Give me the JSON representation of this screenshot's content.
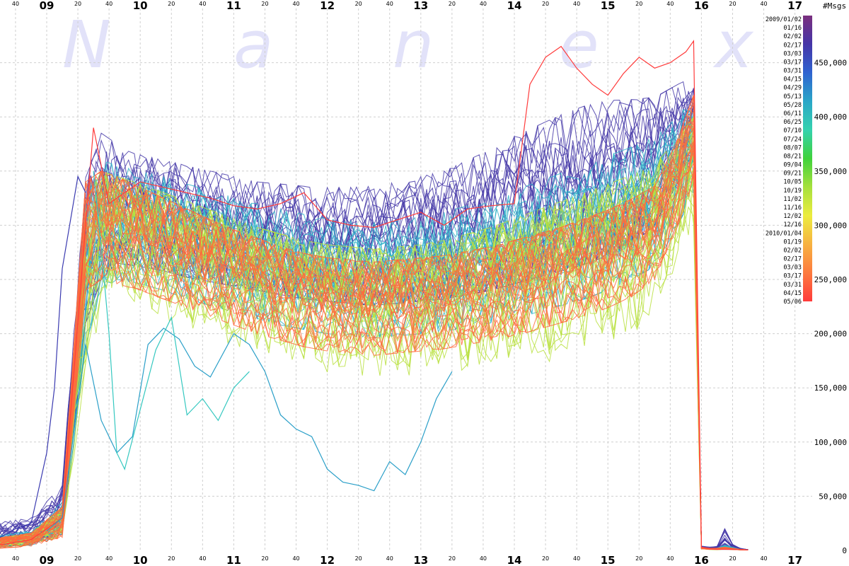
{
  "chart_data": {
    "type": "line",
    "title": "",
    "xlabel": "",
    "ylabel": "",
    "y_units": "#Msgs",
    "watermark": [
      "N",
      "a",
      "n",
      "e",
      "x"
    ],
    "x_hour_labels": [
      "09",
      "10",
      "11",
      "12",
      "13",
      "14",
      "15",
      "16",
      "17"
    ],
    "x_minute_labels": [
      "20",
      "40"
    ],
    "x_leading_minute": "40",
    "x_range": [
      "08:30",
      "17:00"
    ],
    "ylim": [
      0,
      500000
    ],
    "y_ticks": [
      {
        "value": 0,
        "label": "0"
      },
      {
        "value": 50000,
        "label": "50,000"
      },
      {
        "value": 100000,
        "label": "100,000"
      },
      {
        "value": 150000,
        "label": "150,000"
      },
      {
        "value": 200000,
        "label": "200,000"
      },
      {
        "value": 250000,
        "label": "250,000"
      },
      {
        "value": 300000,
        "label": "300,000"
      },
      {
        "value": 350000,
        "label": "350,000"
      },
      {
        "value": 400000,
        "label": "400,000"
      },
      {
        "value": 450000,
        "label": "450,000"
      }
    ],
    "grid": true,
    "legend_placement": "right",
    "legend_dates": [
      "2009/01/02",
      "01/16",
      "02/02",
      "02/17",
      "03/03",
      "03/17",
      "03/31",
      "04/15",
      "04/29",
      "05/13",
      "05/28",
      "06/11",
      "06/25",
      "07/10",
      "07/24",
      "08/07",
      "08/21",
      "09/04",
      "09/21",
      "10/05",
      "10/19",
      "11/02",
      "11/16",
      "12/02",
      "12/16",
      "2010/01/04",
      "01/19",
      "02/02",
      "02/17",
      "03/03",
      "03/17",
      "03/31",
      "04/15",
      "05/06"
    ],
    "color_scale": [
      "#7b2f7e",
      "#4535a8",
      "#2f63d0",
      "#2aa6c8",
      "#35d2ae",
      "#3fd23b",
      "#a6e03d",
      "#ecec3f",
      "#f7b241",
      "#fd7b3f",
      "#ff3b3b"
    ],
    "series_bands": [
      {
        "name": "2009/01/02 – 2009/04/15",
        "color": "#4538a8",
        "x": [
          "08:30",
          "08:50",
          "09:10",
          "09:25",
          "09:35",
          "09:45",
          "10:00",
          "10:15",
          "10:30",
          "10:45",
          "11:00",
          "11:15",
          "11:30",
          "11:45",
          "12:00",
          "12:15",
          "12:30",
          "12:45",
          "13:00",
          "13:15",
          "13:30",
          "13:45",
          "14:00",
          "14:15",
          "14:30",
          "14:45",
          "15:00",
          "15:15",
          "15:30",
          "15:45",
          "15:55",
          "16:00",
          "16:05",
          "16:10",
          "16:15",
          "16:20",
          "16:25",
          "16:30"
        ],
        "low": [
          3000,
          6000,
          15000,
          210000,
          250000,
          265000,
          262000,
          258000,
          252000,
          248000,
          244000,
          240000,
          236000,
          232000,
          230000,
          228000,
          226000,
          228000,
          230000,
          232000,
          236000,
          240000,
          246000,
          252000,
          258000,
          264000,
          272000,
          282000,
          300000,
          340000,
          360000,
          2000,
          1000,
          1000,
          1500,
          1000,
          800,
          500
        ],
        "high": [
          26000,
          30000,
          60000,
          345000,
          385000,
          375000,
          365000,
          360000,
          355000,
          350000,
          345000,
          340000,
          338000,
          336000,
          335000,
          335000,
          336000,
          340000,
          345000,
          350000,
          360000,
          370000,
          382000,
          392000,
          402000,
          410000,
          415000,
          416000,
          418000,
          430000,
          440000,
          4000,
          3000,
          4000,
          20000,
          6000,
          2000,
          800
        ]
      },
      {
        "name": "2009/05/13 – 2009/10/19",
        "color": "#2fb2c8",
        "x": [
          "08:30",
          "08:50",
          "09:10",
          "09:25",
          "09:35",
          "09:45",
          "10:00",
          "10:15",
          "10:30",
          "10:45",
          "11:00",
          "11:15",
          "11:30",
          "11:45",
          "12:00",
          "12:15",
          "12:30",
          "12:45",
          "13:00",
          "13:15",
          "13:30",
          "13:45",
          "14:00",
          "14:15",
          "14:30",
          "14:45",
          "15:00",
          "15:15",
          "15:30",
          "15:45",
          "15:55",
          "16:00",
          "16:05",
          "16:10",
          "16:15",
          "16:20",
          "16:25",
          "16:30"
        ],
        "low": [
          3000,
          5000,
          12000,
          190000,
          240000,
          250000,
          246000,
          240000,
          232000,
          226000,
          220000,
          214000,
          208000,
          204000,
          200000,
          198000,
          196000,
          198000,
          200000,
          202000,
          206000,
          210000,
          214000,
          220000,
          226000,
          232000,
          240000,
          250000,
          262000,
          300000,
          330000,
          2000,
          1000,
          800,
          1000,
          800,
          500,
          400
        ],
        "high": [
          14000,
          18000,
          45000,
          330000,
          360000,
          355000,
          350000,
          345000,
          338000,
          332000,
          326000,
          320000,
          315000,
          310000,
          306000,
          304000,
          302000,
          304000,
          308000,
          312000,
          318000,
          325000,
          332000,
          340000,
          348000,
          356000,
          364000,
          372000,
          382000,
          400000,
          420000,
          3000,
          2000,
          2000,
          5000,
          3000,
          1000,
          600
        ]
      },
      {
        "name": "2009/11/02 – 2010/01/19",
        "color": "#b8e03e",
        "x": [
          "08:30",
          "08:50",
          "09:10",
          "09:25",
          "09:35",
          "09:45",
          "10:00",
          "10:15",
          "10:30",
          "10:45",
          "11:00",
          "11:15",
          "11:30",
          "11:45",
          "12:00",
          "12:15",
          "12:30",
          "12:45",
          "13:00",
          "13:15",
          "13:30",
          "13:45",
          "14:00",
          "14:15",
          "14:30",
          "14:45",
          "15:00",
          "15:15",
          "15:30",
          "15:45",
          "15:55",
          "16:00",
          "16:05",
          "16:10",
          "16:15",
          "16:20",
          "16:25",
          "16:30"
        ],
        "low": [
          2000,
          4000,
          10000,
          160000,
          220000,
          225000,
          218000,
          210000,
          202000,
          194000,
          186000,
          180000,
          174000,
          168000,
          164000,
          160000,
          158000,
          158000,
          160000,
          162000,
          164000,
          166000,
          168000,
          170000,
          174000,
          178000,
          184000,
          192000,
          210000,
          260000,
          300000,
          1500,
          800,
          600,
          800,
          600,
          400,
          300
        ],
        "high": [
          12000,
          16000,
          40000,
          320000,
          350000,
          345000,
          338000,
          330000,
          322000,
          314000,
          306000,
          298000,
          292000,
          286000,
          282000,
          280000,
          278000,
          280000,
          282000,
          286000,
          292000,
          298000,
          306000,
          314000,
          322000,
          330000,
          338000,
          346000,
          356000,
          380000,
          400000,
          2500,
          1500,
          1500,
          3000,
          2000,
          800,
          500
        ]
      },
      {
        "name": "2010/02/02 – 2010/05/06",
        "color": "#ff6a3d",
        "x": [
          "08:30",
          "08:50",
          "09:10",
          "09:25",
          "09:35",
          "09:45",
          "10:00",
          "10:15",
          "10:30",
          "10:45",
          "11:00",
          "11:15",
          "11:30",
          "11:45",
          "12:00",
          "12:15",
          "12:30",
          "12:45",
          "13:00",
          "13:15",
          "13:30",
          "13:45",
          "14:00",
          "14:15",
          "14:30",
          "14:45",
          "15:00",
          "15:15",
          "15:30",
          "15:45",
          "15:55",
          "16:00",
          "16:05",
          "16:10",
          "16:15",
          "16:20",
          "16:25",
          "16:30"
        ],
        "low": [
          2000,
          4000,
          12000,
          240000,
          250000,
          246000,
          240000,
          232000,
          224000,
          216000,
          208000,
          200000,
          194000,
          188000,
          184000,
          182000,
          180000,
          182000,
          184000,
          186000,
          190000,
          194000,
          198000,
          204000,
          210000,
          216000,
          224000,
          234000,
          250000,
          300000,
          340000,
          1500,
          1000,
          800,
          1000,
          800,
          500,
          400
        ],
        "high": [
          12000,
          16000,
          40000,
          340000,
          350000,
          345000,
          335000,
          325000,
          315000,
          305000,
          296000,
          288000,
          280000,
          274000,
          270000,
          268000,
          266000,
          268000,
          270000,
          272000,
          276000,
          280000,
          286000,
          292000,
          298000,
          306000,
          314000,
          324000,
          336000,
          380000,
          420000,
          3000,
          2000,
          2000,
          3000,
          2000,
          1000,
          600
        ]
      }
    ],
    "series": [
      {
        "name": "2010/05/06",
        "color": "#ff3b3b",
        "x": [
          "08:30",
          "08:50",
          "09:10",
          "09:30",
          "09:40",
          "09:50",
          "10:00",
          "10:15",
          "10:30",
          "10:45",
          "11:00",
          "11:15",
          "11:30",
          "11:45",
          "12:00",
          "12:15",
          "12:30",
          "12:45",
          "13:00",
          "13:15",
          "13:30",
          "13:45",
          "14:00",
          "14:10",
          "14:20",
          "14:30",
          "14:40",
          "14:50",
          "15:00",
          "15:10",
          "15:20",
          "15:30",
          "15:40",
          "15:50",
          "15:55",
          "16:00",
          "16:05",
          "16:10",
          "16:20",
          "16:30"
        ],
        "y": [
          5000,
          10000,
          30000,
          390000,
          320000,
          330000,
          340000,
          335000,
          330000,
          325000,
          318000,
          315000,
          320000,
          330000,
          305000,
          300000,
          298000,
          305000,
          312000,
          300000,
          315000,
          318000,
          320000,
          430000,
          455000,
          465000,
          445000,
          430000,
          420000,
          440000,
          455000,
          445000,
          450000,
          460000,
          470000,
          3000,
          1500,
          1000,
          1000,
          500
        ]
      },
      {
        "name": "2009/10/05",
        "color": "#2a9fc8",
        "x": [
          "09:00",
          "09:10",
          "09:25",
          "09:35",
          "09:45",
          "09:55",
          "10:05",
          "10:15",
          "10:25",
          "10:35",
          "10:45",
          "11:00",
          "11:10",
          "11:20",
          "11:30",
          "11:40",
          "11:50",
          "12:00",
          "12:10",
          "12:20",
          "12:30",
          "12:40",
          "12:50",
          "13:00",
          "13:10",
          "13:20"
        ],
        "y": [
          18000,
          30000,
          190000,
          120000,
          90000,
          105000,
          190000,
          205000,
          195000,
          170000,
          160000,
          200000,
          190000,
          165000,
          125000,
          112000,
          105000,
          75000,
          63000,
          60000,
          55000,
          82000,
          70000,
          100000,
          140000,
          165000
        ]
      },
      {
        "name": "2009/09/21",
        "color": "#35c8c0",
        "x": [
          "09:30",
          "09:35",
          "09:40",
          "09:45",
          "09:50",
          "10:00",
          "10:10",
          "10:20",
          "10:30",
          "10:40",
          "10:50",
          "11:00",
          "11:10"
        ],
        "y": [
          350000,
          280000,
          200000,
          90000,
          75000,
          130000,
          185000,
          215000,
          125000,
          140000,
          120000,
          150000,
          165000
        ]
      },
      {
        "name": "2009/01/02",
        "color": "#3a3ab0",
        "x": [
          "08:30",
          "08:40",
          "08:50",
          "09:00",
          "09:05",
          "09:10",
          "09:20",
          "09:25"
        ],
        "y": [
          12000,
          20000,
          25000,
          90000,
          150000,
          260000,
          345000,
          330000
        ]
      }
    ]
  }
}
